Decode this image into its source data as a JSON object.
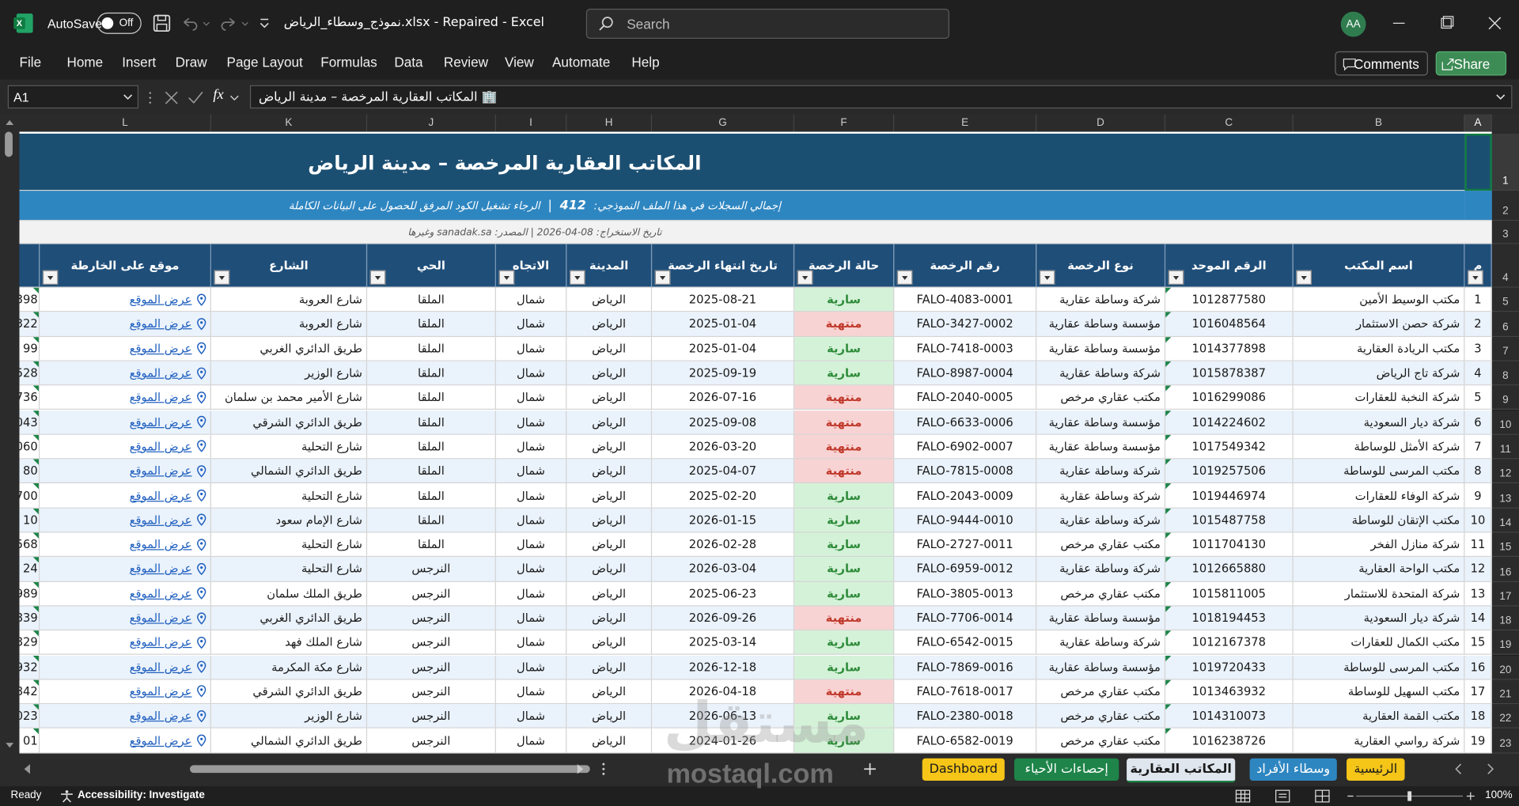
{
  "title_bar": {
    "autosave": "AutoSave",
    "toggle": "Off",
    "filename": "نموذج_وسطاء_الرياض.xlsx  -  Repaired  -  Excel",
    "search": "Search",
    "avatar": "AA"
  },
  "menu": [
    "File",
    "Home",
    "Insert",
    "Draw",
    "Page Layout",
    "Formulas",
    "Data",
    "Review",
    "View",
    "Automate",
    "Help"
  ],
  "comments": "Comments",
  "share": "Share",
  "formula_bar": {
    "name_box": "A1",
    "fx": "fx",
    "content": "المكاتب العقارية المرخصة – مدينة الرياض 🏢"
  },
  "columns": [
    "A",
    "B",
    "C",
    "D",
    "E",
    "F",
    "G",
    "H",
    "I",
    "J",
    "K",
    "L"
  ],
  "row_numbers": [
    "1",
    "2",
    "3",
    "4",
    "5",
    "6",
    "7",
    "8",
    "9",
    "10",
    "11",
    "12",
    "13",
    "14",
    "15",
    "16",
    "17",
    "18",
    "19",
    "20",
    "21",
    "22",
    "23"
  ],
  "sheet": {
    "title": "المكاتب العقارية المرخصة – مدينة الرياض",
    "info": {
      "label": "إجمالي السجلات في هذا الملف النموذجي:",
      "count": "412",
      "separator": "|",
      "note": "الرجاء تشغيل الكود المرفق للحصول على البيانات الكاملة"
    },
    "meta": "تاريخ الاستخراج: 08-04-2026  |  المصدر: sanadak.sa وغيرها",
    "headers": [
      "م",
      "اسم المكتب",
      "الرقم الموحد",
      "نوع الرخصة",
      "رقم الرخصة",
      "حالة الرخصة",
      "تاريخ انتهاء الرخصة",
      "المدينة",
      "الاتجاه",
      "الحي",
      "الشارع",
      "موقع على الخارطة"
    ],
    "rows": [
      [
        "1",
        "مكتب الوسيط الأمين",
        "1012877580",
        "شركة وساطة عقارية",
        "FALO-4083-0001",
        "سارية",
        "2025-08-21",
        "الرياض",
        "شمال",
        "الملقا",
        "شارع العروبة",
        "عرض الموقع"
      ],
      [
        "2",
        "شركة حصن الاستثمار",
        "1016048564",
        "مؤسسة وساطة عقارية",
        "FALO-3427-0002",
        "منتهية",
        "2025-01-04",
        "الرياض",
        "شمال",
        "الملقا",
        "شارع العروبة",
        "عرض الموقع"
      ],
      [
        "3",
        "مكتب الريادة العقارية",
        "1014377898",
        "مؤسسة وساطة عقارية",
        "FALO-7418-0003",
        "سارية",
        "2025-01-04",
        "الرياض",
        "شمال",
        "الملقا",
        "طريق الدائري الغربي",
        "عرض الموقع"
      ],
      [
        "4",
        "شركة تاج الرياض",
        "1015878387",
        "شركة وساطة عقارية",
        "FALO-8987-0004",
        "سارية",
        "2025-09-19",
        "الرياض",
        "شمال",
        "الملقا",
        "شارع الوزير",
        "عرض الموقع"
      ],
      [
        "5",
        "شركة النخبة للعقارات",
        "1016299086",
        "مكتب عقاري مرخص",
        "FALO-2040-0005",
        "منتهية",
        "2026-07-16",
        "الرياض",
        "شمال",
        "الملقا",
        "شارع الأمير محمد بن سلمان",
        "عرض الموقع"
      ],
      [
        "6",
        "شركة ديار السعودية",
        "1014224602",
        "مؤسسة وساطة عقارية",
        "FALO-6633-0006",
        "منتهية",
        "2025-09-08",
        "الرياض",
        "شمال",
        "الملقا",
        "طريق الدائري الشرقي",
        "عرض الموقع"
      ],
      [
        "7",
        "شركة الأمثل للوساطة",
        "1017549342",
        "مؤسسة وساطة عقارية",
        "FALO-6902-0007",
        "منتهية",
        "2026-03-20",
        "الرياض",
        "شمال",
        "الملقا",
        "شارع التحلية",
        "عرض الموقع"
      ],
      [
        "8",
        "مكتب المرسى للوساطة",
        "1019257506",
        "شركة وساطة عقارية",
        "FALO-7815-0008",
        "منتهية",
        "2025-04-07",
        "الرياض",
        "شمال",
        "الملقا",
        "طريق الدائري الشمالي",
        "عرض الموقع"
      ],
      [
        "9",
        "شركة الوفاء للعقارات",
        "1019446974",
        "شركة وساطة عقارية",
        "FALO-2043-0009",
        "سارية",
        "2025-02-20",
        "الرياض",
        "شمال",
        "الملقا",
        "شارع التحلية",
        "عرض الموقع"
      ],
      [
        "10",
        "مكتب الإتقان للوساطة",
        "1015487758",
        "شركة وساطة عقارية",
        "FALO-9444-0010",
        "سارية",
        "2026-01-15",
        "الرياض",
        "شمال",
        "الملقا",
        "شارع الإمام سعود",
        "عرض الموقع"
      ],
      [
        "11",
        "شركة منازل الفخر",
        "1011704130",
        "مكتب عقاري مرخص",
        "FALO-2727-0011",
        "سارية",
        "2026-02-28",
        "الرياض",
        "شمال",
        "الملقا",
        "شارع التحلية",
        "عرض الموقع"
      ],
      [
        "12",
        "مكتب الواحة العقارية",
        "1012665880",
        "شركة وساطة عقارية",
        "FALO-6959-0012",
        "سارية",
        "2026-03-04",
        "الرياض",
        "شمال",
        "النرجس",
        "شارع التحلية",
        "عرض الموقع"
      ],
      [
        "13",
        "شركة المتحدة للاستثمار",
        "1015811005",
        "مكتب عقاري مرخص",
        "FALO-3805-0013",
        "سارية",
        "2025-06-23",
        "الرياض",
        "شمال",
        "النرجس",
        "طريق الملك سلمان",
        "عرض الموقع"
      ],
      [
        "14",
        "شركة ديار السعودية",
        "1018194453",
        "مؤسسة وساطة عقارية",
        "FALO-7706-0014",
        "منتهية",
        "2026-09-26",
        "الرياض",
        "شمال",
        "النرجس",
        "طريق الدائري الغربي",
        "عرض الموقع"
      ],
      [
        "15",
        "مكتب الكمال للعقارات",
        "1012167378",
        "شركة وساطة عقارية",
        "FALO-6542-0015",
        "سارية",
        "2025-03-14",
        "الرياض",
        "شمال",
        "النرجس",
        "شارع الملك فهد",
        "عرض الموقع"
      ],
      [
        "16",
        "مكتب المرسى للوساطة",
        "1019720433",
        "مؤسسة وساطة عقارية",
        "FALO-7869-0016",
        "سارية",
        "2026-12-18",
        "الرياض",
        "شمال",
        "النرجس",
        "شارع مكة المكرمة",
        "عرض الموقع"
      ],
      [
        "17",
        "مكتب السهيل للوساطة",
        "1013463932",
        "مكتب عقاري مرخص",
        "FALO-7618-0017",
        "منتهية",
        "2026-04-18",
        "الرياض",
        "شمال",
        "النرجس",
        "طريق الدائري الشرقي",
        "عرض الموقع"
      ],
      [
        "18",
        "مكتب القمة العقارية",
        "1014310073",
        "مكتب عقاري مرخص",
        "FALO-2380-0018",
        "سارية",
        "2026-06-13",
        "الرياض",
        "شمال",
        "النرجس",
        "شارع الوزير",
        "عرض الموقع"
      ],
      [
        "19",
        "شركة رواسي العقارية",
        "1016238726",
        "مكتب عقاري مرخص",
        "FALO-6582-0019",
        "سارية",
        "2024-01-26",
        "الرياض",
        "شمال",
        "النرجس",
        "طريق الدائري الشمالي",
        "عرض الموقع"
      ]
    ],
    "active_status": "سارية",
    "overflow": [
      "398",
      "322",
      "99",
      "528",
      "736",
      "043",
      "060",
      "80",
      "700",
      "10",
      "568",
      "24",
      "989",
      "839",
      "829",
      "932",
      "842",
      "023",
      "01"
    ]
  },
  "watermark": {
    "arabic": "مستقل",
    "latin": "mostaql.com"
  },
  "tabs": [
    "الرئيسية",
    "وسطاء الأفراد",
    "المكاتب العقارية",
    "إحصاءات الأحياء",
    "Dashboard"
  ],
  "status": {
    "ready": "Ready",
    "accessibility": "Accessibility: Investigate",
    "zoom": "100%"
  }
}
